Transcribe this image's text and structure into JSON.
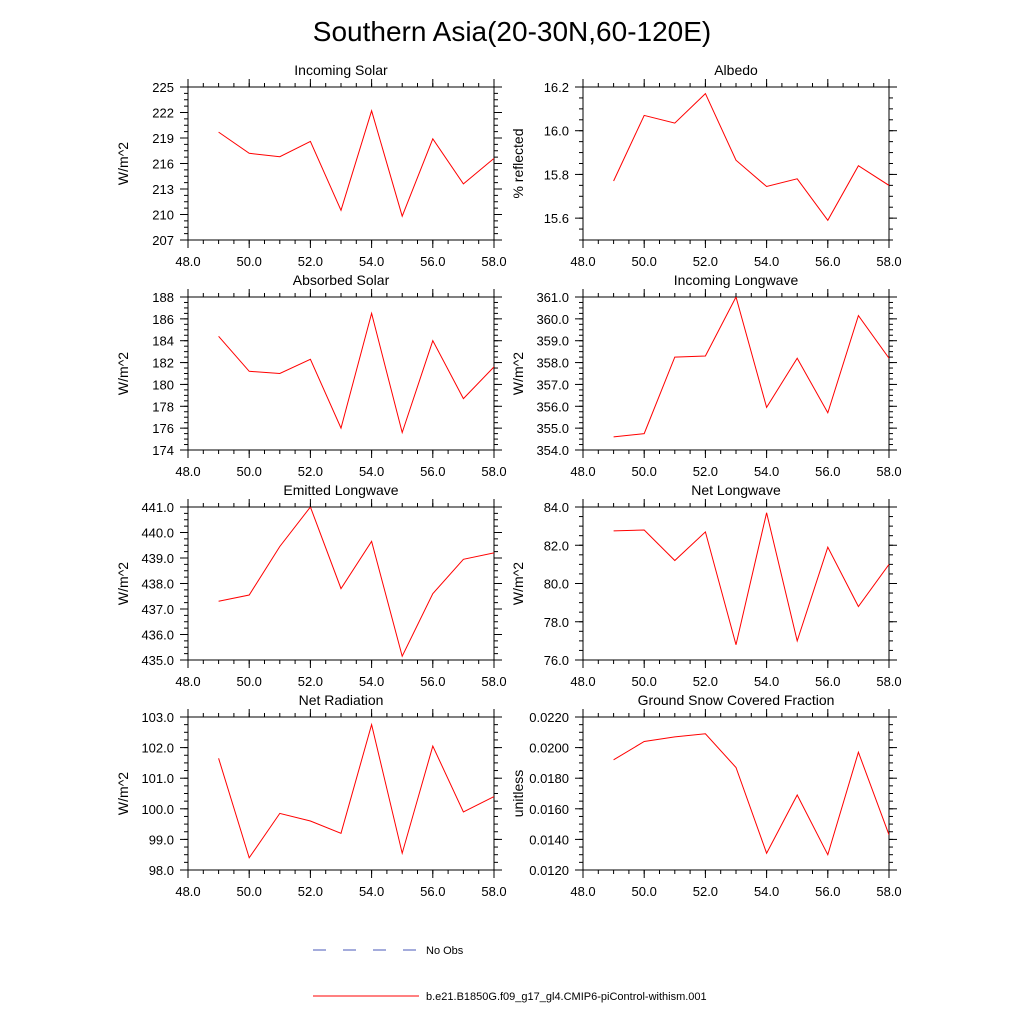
{
  "page_title": "Southern Asia(20-30N,60-120E)",
  "legend": {
    "obs_label": "No Obs",
    "obs_color": "#4a5ab8",
    "model_label": "b.e21.B1850G.f09_g17_gl4.CMIP6-piControl-withism.001",
    "model_color": "#ff0000"
  },
  "chart_data": [
    {
      "type": "line",
      "title": "Incoming Solar",
      "xlabel": "",
      "ylabel": "W/m^2",
      "xlim": [
        48,
        58
      ],
      "ylim": [
        207,
        225
      ],
      "xticks": [
        48,
        50,
        52,
        54,
        56,
        58
      ],
      "xtick_labels": [
        "48.0",
        "50.0",
        "52.0",
        "54.0",
        "56.0",
        "58.0"
      ],
      "yticks": [
        207,
        210,
        213,
        216,
        219,
        222,
        225
      ],
      "ytick_labels": [
        "207",
        "210",
        "213",
        "216",
        "219",
        "222",
        "225"
      ],
      "series": [
        {
          "x": [
            49,
            50,
            51,
            52,
            53,
            54,
            55,
            56,
            57,
            58
          ],
          "y": [
            219.7,
            217.2,
            216.8,
            218.6,
            210.5,
            222.2,
            209.8,
            218.9,
            213.6,
            216.6
          ]
        }
      ]
    },
    {
      "type": "line",
      "title": "Albedo",
      "xlabel": "",
      "ylabel": "% reflected",
      "xlim": [
        48,
        58
      ],
      "ylim": [
        15.5,
        16.2
      ],
      "xticks": [
        48,
        50,
        52,
        54,
        56,
        58
      ],
      "xtick_labels": [
        "48.0",
        "50.0",
        "52.0",
        "54.0",
        "56.0",
        "58.0"
      ],
      "yticks": [
        15.6,
        15.8,
        16.0,
        16.2
      ],
      "ytick_labels": [
        "15.6",
        "15.8",
        "16.0",
        "16.2"
      ],
      "series": [
        {
          "x": [
            49,
            50,
            51,
            52,
            53,
            54,
            55,
            56,
            57,
            58
          ],
          "y": [
            15.77,
            16.07,
            16.035,
            16.17,
            15.865,
            15.745,
            15.78,
            15.59,
            15.84,
            15.75
          ]
        }
      ]
    },
    {
      "type": "line",
      "title": "Absorbed Solar",
      "xlabel": "",
      "ylabel": "W/m^2",
      "xlim": [
        48,
        58
      ],
      "ylim": [
        174,
        188
      ],
      "xticks": [
        48,
        50,
        52,
        54,
        56,
        58
      ],
      "xtick_labels": [
        "48.0",
        "50.0",
        "52.0",
        "54.0",
        "56.0",
        "58.0"
      ],
      "yticks": [
        174,
        176,
        178,
        180,
        182,
        184,
        186,
        188
      ],
      "ytick_labels": [
        "174",
        "176",
        "178",
        "180",
        "182",
        "184",
        "186",
        "188"
      ],
      "series": [
        {
          "x": [
            49,
            50,
            51,
            52,
            53,
            54,
            55,
            56,
            57,
            58
          ],
          "y": [
            184.4,
            181.2,
            181.0,
            182.3,
            176.0,
            186.5,
            175.6,
            184.0,
            178.7,
            181.6
          ]
        }
      ]
    },
    {
      "type": "line",
      "title": "Incoming Longwave",
      "xlabel": "",
      "ylabel": "W/m^2",
      "xlim": [
        48,
        58
      ],
      "ylim": [
        354,
        361
      ],
      "xticks": [
        48,
        50,
        52,
        54,
        56,
        58
      ],
      "xtick_labels": [
        "48.0",
        "50.0",
        "52.0",
        "54.0",
        "56.0",
        "58.0"
      ],
      "yticks": [
        354,
        355,
        356,
        357,
        358,
        359,
        360,
        361
      ],
      "ytick_labels": [
        "354.0",
        "355.0",
        "356.0",
        "357.0",
        "358.0",
        "359.0",
        "360.0",
        "361.0"
      ],
      "series": [
        {
          "x": [
            49,
            50,
            51,
            52,
            53,
            54,
            55,
            56,
            57,
            58
          ],
          "y": [
            354.6,
            354.75,
            358.25,
            358.3,
            361.0,
            355.95,
            358.2,
            355.7,
            360.15,
            358.2
          ]
        }
      ]
    },
    {
      "type": "line",
      "title": "Emitted Longwave",
      "xlabel": "",
      "ylabel": "W/m^2",
      "xlim": [
        48,
        58
      ],
      "ylim": [
        435,
        441
      ],
      "xticks": [
        48,
        50,
        52,
        54,
        56,
        58
      ],
      "xtick_labels": [
        "48.0",
        "50.0",
        "52.0",
        "54.0",
        "56.0",
        "58.0"
      ],
      "yticks": [
        435,
        436,
        437,
        438,
        439,
        440,
        441
      ],
      "ytick_labels": [
        "435.0",
        "436.0",
        "437.0",
        "438.0",
        "439.0",
        "440.0",
        "441.0"
      ],
      "series": [
        {
          "x": [
            49,
            50,
            51,
            52,
            53,
            54,
            55,
            56,
            57,
            58
          ],
          "y": [
            437.3,
            437.55,
            439.45,
            441.0,
            437.8,
            439.65,
            435.15,
            437.6,
            438.95,
            439.2
          ]
        }
      ]
    },
    {
      "type": "line",
      "title": "Net Longwave",
      "xlabel": "",
      "ylabel": "W/m^2",
      "xlim": [
        48,
        58
      ],
      "ylim": [
        76,
        84
      ],
      "xticks": [
        48,
        50,
        52,
        54,
        56,
        58
      ],
      "xtick_labels": [
        "48.0",
        "50.0",
        "52.0",
        "54.0",
        "56.0",
        "58.0"
      ],
      "yticks": [
        76,
        78,
        80,
        82,
        84
      ],
      "ytick_labels": [
        "76.0",
        "78.0",
        "80.0",
        "82.0",
        "84.0"
      ],
      "series": [
        {
          "x": [
            49,
            50,
            51,
            52,
            53,
            54,
            55,
            56,
            57,
            58
          ],
          "y": [
            82.75,
            82.8,
            81.2,
            82.7,
            76.8,
            83.7,
            77.0,
            81.9,
            78.8,
            81.0
          ]
        }
      ]
    },
    {
      "type": "line",
      "title": "Net Radiation",
      "xlabel": "",
      "ylabel": "W/m^2",
      "xlim": [
        48,
        58
      ],
      "ylim": [
        98,
        103
      ],
      "xticks": [
        48,
        50,
        52,
        54,
        56,
        58
      ],
      "xtick_labels": [
        "48.0",
        "50.0",
        "52.0",
        "54.0",
        "56.0",
        "58.0"
      ],
      "yticks": [
        98,
        99,
        100,
        101,
        102,
        103
      ],
      "ytick_labels": [
        "98.0",
        "99.0",
        "100.0",
        "101.0",
        "102.0",
        "103.0"
      ],
      "series": [
        {
          "x": [
            49,
            50,
            51,
            52,
            53,
            54,
            55,
            56,
            57,
            58
          ],
          "y": [
            101.65,
            98.4,
            99.85,
            99.6,
            99.2,
            102.75,
            98.55,
            102.05,
            99.9,
            100.4
          ]
        }
      ]
    },
    {
      "type": "line",
      "title": "Ground Snow Covered Fraction",
      "xlabel": "",
      "ylabel": "unitless",
      "xlim": [
        48,
        58
      ],
      "ylim": [
        0.012,
        0.022
      ],
      "xticks": [
        48,
        50,
        52,
        54,
        56,
        58
      ],
      "xtick_labels": [
        "48.0",
        "50.0",
        "52.0",
        "54.0",
        "56.0",
        "58.0"
      ],
      "yticks": [
        0.012,
        0.014,
        0.016,
        0.018,
        0.02,
        0.022
      ],
      "ytick_labels": [
        "0.0120",
        "0.0140",
        "0.0160",
        "0.0180",
        "0.0200",
        "0.0220"
      ],
      "series": [
        {
          "x": [
            49,
            50,
            51,
            52,
            53,
            54,
            55,
            56,
            57,
            58
          ],
          "y": [
            0.0192,
            0.0204,
            0.0207,
            0.0209,
            0.0187,
            0.0131,
            0.0169,
            0.013,
            0.0197,
            0.0143
          ]
        }
      ]
    }
  ]
}
